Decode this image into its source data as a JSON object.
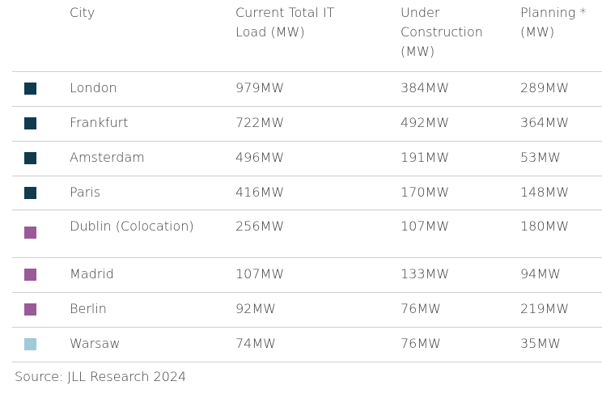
{
  "table": {
    "header": [
      "City",
      "Current Total IT Load (MW)",
      "Under Construction (MW)",
      "Planning * (MW)"
    ],
    "rows": [
      {
        "color": "#0f3b4e",
        "cells": [
          "London",
          "979MW",
          "384MW",
          "289MW"
        ]
      },
      {
        "color": "#0f3b4e",
        "cells": [
          "Frankfurt",
          "722MW",
          "492MW",
          "364MW"
        ]
      },
      {
        "color": "#0f3b4e",
        "cells": [
          "Amsterdam",
          "496MW",
          "191MW",
          "53MW"
        ]
      },
      {
        "color": "#0f3b4e",
        "cells": [
          "Paris",
          "416MW",
          "170MW",
          "148MW"
        ]
      },
      {
        "color": "#9a5a98",
        "cells": [
          "Dublin (Colocation)",
          "256MW",
          "107MW",
          "180MW"
        ]
      },
      {
        "color": "#9a5a98",
        "cells": [
          "Madrid",
          "107MW",
          "133MW",
          "94MW"
        ]
      },
      {
        "color": "#9a5a98",
        "cells": [
          "Berlin",
          "92MW",
          "76MW",
          "219MW"
        ]
      },
      {
        "color": "#9fcbd9",
        "cells": [
          "Warsaw",
          "74MW",
          "76MW",
          "35MW"
        ]
      }
    ]
  },
  "source": "Source: JLL Research 2024"
}
